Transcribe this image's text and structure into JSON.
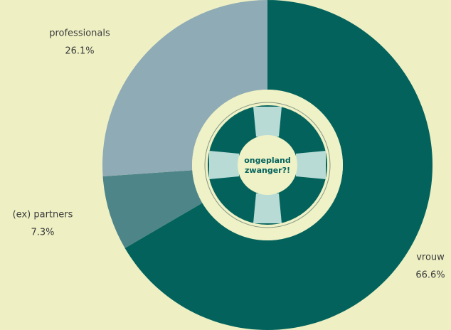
{
  "chart_data": {
    "type": "pie",
    "donut": true,
    "categories": [
      "vrouw",
      "(ex) partners",
      "professionals"
    ],
    "values": [
      66.6,
      7.3,
      26.1
    ],
    "value_labels": [
      "66.6%",
      "7.3%",
      "26.1%"
    ],
    "colors": [
      "#03635c",
      "#4e8588",
      "#8fabb5"
    ],
    "center_label": [
      "ongepland",
      "zwanger?!"
    ]
  }
}
